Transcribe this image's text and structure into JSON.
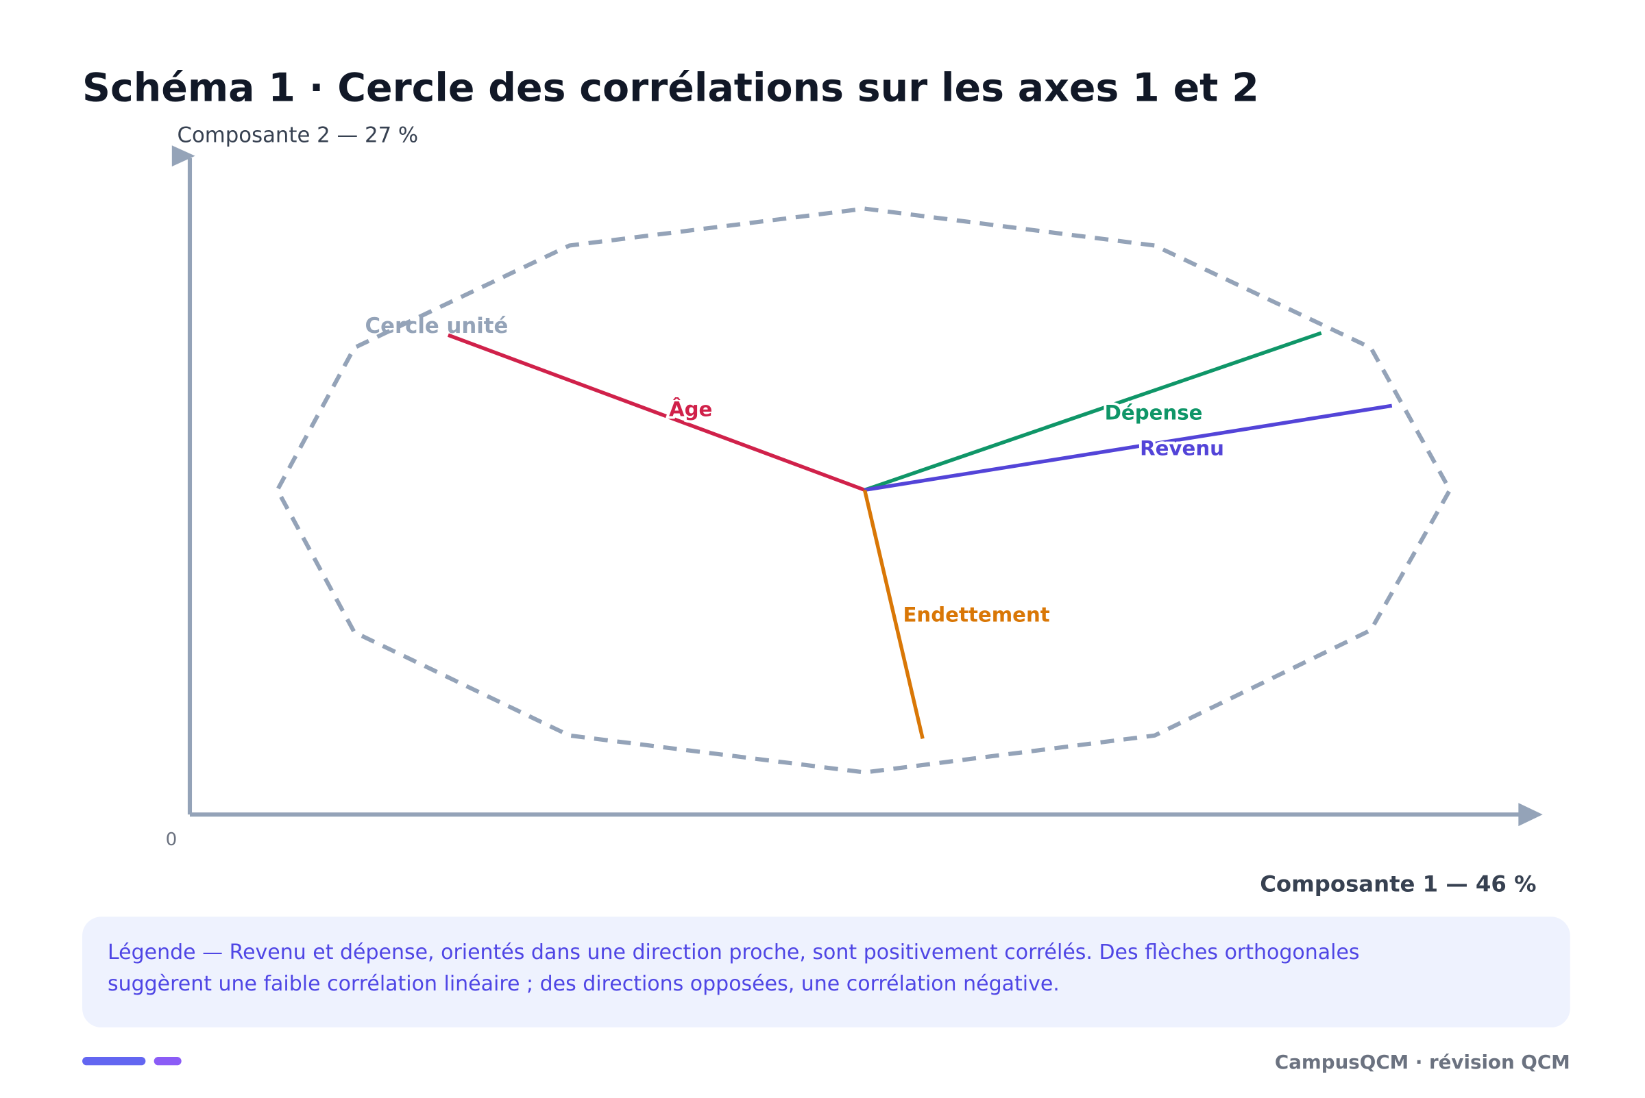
{
  "header": {
    "title": "Schéma 1 · Cercle des corrélations sur les axes 1 et 2"
  },
  "axes": {
    "y_label": "Composante 2 — 27 %",
    "x_label": "Composante 1 — 46 %",
    "origin": "0"
  },
  "circle": {
    "label": "Cercle unité"
  },
  "variables": [
    {
      "label": "Âge"
    },
    {
      "label": "Dépense"
    },
    {
      "label": "Revenu"
    },
    {
      "label": "Endettement"
    }
  ],
  "legend": {
    "lines": [
      "Légende — Revenu et dépense, orientés dans une direction proche, sont positivement corrélés. Des flèches orthogonales",
      "suggèrent une faible corrélation linéaire ; des directions opposées, une corrélation négative."
    ]
  },
  "footer": {
    "brand": "CampusQCM · révision QCM"
  }
}
